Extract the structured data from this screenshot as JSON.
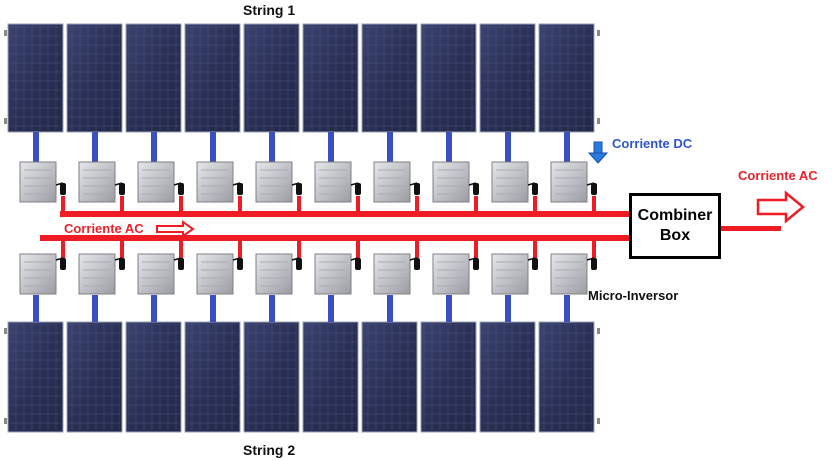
{
  "labels": {
    "string_1": "String 1",
    "string_2": "String 2",
    "dc_current": "Corriente DC",
    "ac_current_left": "Corriente AC",
    "ac_current_right": "Corriente AC",
    "micro_inverter": "Micro-Inversor",
    "combiner_line1": "Combiner",
    "combiner_line2": "Box"
  },
  "strings": [
    {
      "name": "String 1",
      "panel_count": 10
    },
    {
      "name": "String 2",
      "panel_count": 10
    }
  ],
  "colors": {
    "ac_line": "#f01c24",
    "dc_link": "#3a4fc4",
    "dc_arrow": "#2a7be0",
    "panel": "#2e3458",
    "inverter": "#c8c9cc",
    "combiner_border": "#000000"
  }
}
